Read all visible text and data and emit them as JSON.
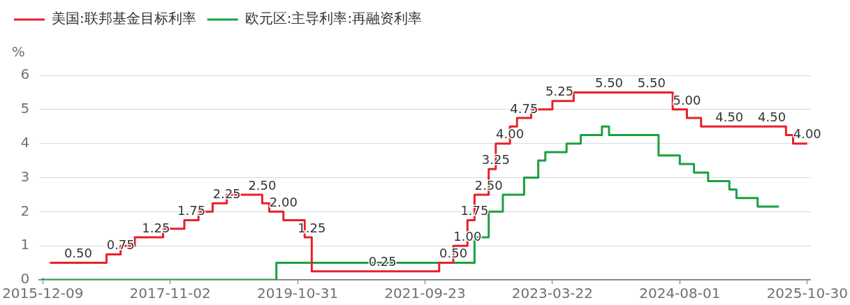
{
  "chart_data": {
    "type": "step",
    "ylabel": "%",
    "legend": "top left",
    "grid": "y",
    "marker": "none",
    "line_style": "solid",
    "categories": [
      "2015-12-09",
      null,
      null,
      null,
      null,
      null,
      null,
      null,
      null,
      null,
      null,
      null,
      null,
      null,
      null,
      null,
      null,
      null,
      "2017-11-02",
      null,
      null,
      null,
      null,
      null,
      null,
      null,
      null,
      null,
      null,
      null,
      null,
      null,
      null,
      null,
      null,
      null,
      "2019-10-31",
      null,
      null,
      null,
      null,
      null,
      null,
      null,
      null,
      null,
      null,
      null,
      null,
      null,
      null,
      null,
      null,
      null,
      "2021-09-23",
      null,
      null,
      null,
      null,
      null,
      null,
      null,
      null,
      null,
      null,
      null,
      null,
      null,
      null,
      null,
      null,
      null,
      "2023-03-22",
      null,
      null,
      null,
      null,
      null,
      null,
      null,
      null,
      null,
      null,
      null,
      null,
      null,
      null,
      null,
      null,
      null,
      "2024-08-01",
      null,
      null,
      null,
      null,
      null,
      null,
      null,
      null,
      null,
      null,
      null,
      null,
      null,
      null,
      null,
      null,
      null,
      "2025-10-30"
    ],
    "ylim": [
      0,
      6
    ],
    "yticks": [
      0,
      1,
      2,
      3,
      4,
      5,
      6
    ],
    "series": [
      {
        "name": "美国:联邦基金目标利率",
        "color": "#e8202a",
        "values": [
          null,
          0.5,
          0.5,
          0.5,
          0.5,
          0.5,
          0.5,
          0.5,
          0.5,
          0.5,
          0.75,
          0.75,
          1.0,
          1.0,
          1.25,
          1.25,
          1.25,
          1.25,
          1.5,
          1.5,
          1.5,
          1.75,
          1.75,
          2.0,
          2.0,
          2.25,
          2.25,
          2.5,
          2.5,
          2.5,
          2.5,
          2.5,
          2.25,
          2.0,
          2.0,
          1.75,
          1.75,
          1.75,
          1.25,
          0.25,
          0.25,
          0.25,
          0.25,
          0.25,
          0.25,
          0.25,
          0.25,
          0.25,
          0.25,
          0.25,
          0.25,
          0.25,
          0.25,
          0.25,
          0.25,
          0.25,
          0.25,
          0.5,
          0.5,
          1.0,
          1.0,
          1.75,
          2.5,
          2.5,
          3.25,
          4.0,
          4.0,
          4.5,
          4.75,
          4.75,
          5.0,
          5.0,
          5.0,
          5.25,
          5.25,
          5.25,
          5.5,
          5.5,
          5.5,
          5.5,
          5.5,
          5.5,
          5.5,
          5.5,
          5.5,
          5.5,
          5.5,
          5.5,
          5.5,
          5.5,
          5.0,
          5.0,
          4.75,
          4.75,
          4.5,
          4.5,
          4.5,
          4.5,
          4.5,
          4.5,
          4.5,
          4.5,
          4.5,
          4.5,
          4.5,
          4.5,
          4.25,
          4.0,
          4.0
        ],
        "value_labels": [
          null,
          null,
          null,
          null,
          null,
          "0.50",
          null,
          null,
          null,
          null,
          null,
          "0.75",
          null,
          null,
          null,
          null,
          "1.25",
          null,
          null,
          null,
          null,
          "1.75",
          null,
          null,
          null,
          null,
          "2.25",
          null,
          null,
          null,
          null,
          "2.50",
          null,
          null,
          "2.00",
          null,
          null,
          null,
          "1.25",
          null,
          null,
          null,
          null,
          null,
          null,
          null,
          null,
          null,
          "0.25",
          null,
          null,
          null,
          null,
          null,
          null,
          null,
          null,
          null,
          "0.50",
          null,
          "1.00",
          "1.75",
          null,
          "2.50",
          "3.25",
          null,
          "4.00",
          null,
          "4.75",
          null,
          null,
          null,
          null,
          "5.25",
          null,
          null,
          null,
          null,
          null,
          null,
          "5.50",
          null,
          null,
          null,
          null,
          null,
          "5.50",
          null,
          null,
          null,
          null,
          "5.00",
          null,
          null,
          null,
          null,
          null,
          "4.50",
          null,
          null,
          null,
          null,
          null,
          "4.50",
          null,
          null,
          null,
          null,
          "4.00"
        ]
      },
      {
        "name": "欧元区:主导利率:再融资利率",
        "color": "#1aa040",
        "values": [
          0.05,
          0,
          0,
          0,
          0,
          0,
          0,
          0,
          0,
          0,
          0,
          0,
          0,
          0,
          0,
          0,
          0,
          0,
          0,
          0,
          0,
          0,
          0,
          0,
          0,
          0,
          0,
          0,
          0,
          0,
          0,
          0,
          0,
          0,
          0.5,
          0.5,
          0.5,
          0.5,
          0.5,
          0.5,
          0.5,
          0.5,
          0.5,
          0.5,
          0.5,
          0.5,
          0.5,
          0.5,
          0.5,
          0.5,
          0.5,
          0.5,
          0.5,
          0.5,
          0.5,
          0.5,
          0.5,
          0.5,
          0.5,
          0.5,
          0.5,
          0.5,
          1.25,
          1.25,
          2.0,
          2.0,
          2.5,
          2.5,
          2.5,
          3.0,
          3.0,
          3.5,
          3.75,
          3.75,
          3.75,
          4.0,
          4.0,
          4.25,
          4.25,
          4.25,
          4.5,
          4.25,
          4.25,
          4.25,
          4.25,
          4.25,
          4.25,
          4.25,
          3.65,
          3.65,
          3.65,
          3.4,
          3.4,
          3.15,
          3.15,
          2.9,
          2.9,
          2.9,
          2.65,
          2.4,
          2.4,
          2.4,
          2.15,
          2.15,
          2.15,
          null,
          null,
          null,
          null
        ]
      }
    ]
  }
}
